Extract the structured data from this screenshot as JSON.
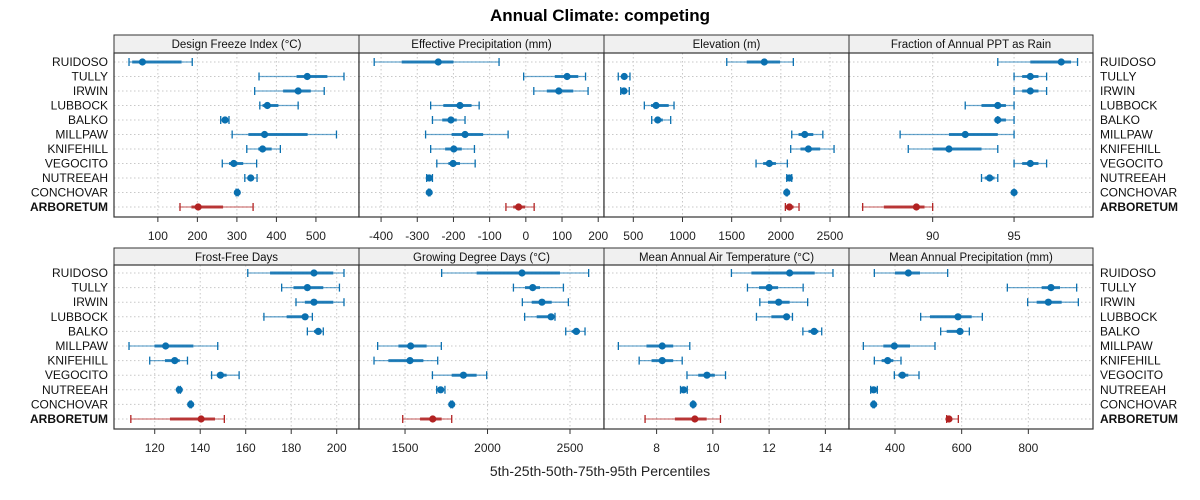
{
  "chart_data": {
    "type": "dotplot-percentile-intervals",
    "title": "Annual Climate: competing",
    "xlabel": "5th-25th-50th-75th-95th Percentiles",
    "sites": [
      "RUIDOSO",
      "TULLY",
      "IRWIN",
      "LUBBOCK",
      "BALKO",
      "MILLPAW",
      "KNIFEHILL",
      "VEGOCITO",
      "NUTREEAH",
      "CONCHOVAR",
      "ARBORETUM"
    ],
    "highlight_site": "ARBORETUM",
    "colors": {
      "default": "#0a70b0",
      "highlight": "#b22222"
    },
    "grid": true,
    "panels": [
      {
        "title": "Design Freeze Index (°C)",
        "xlim": [
          -11,
          609
        ],
        "ticks": [
          100,
          200,
          300,
          400,
          500
        ],
        "values": {
          "RUIDOSO": [
            27,
            35,
            61,
            160,
            187
          ],
          "TULLY": [
            356,
            451,
            478,
            529,
            571
          ],
          "IRWIN": [
            345,
            417,
            455,
            487,
            521
          ],
          "LUBBOCK": [
            358,
            365,
            377,
            405,
            455
          ],
          "BALKO": [
            259,
            265,
            270,
            275,
            280
          ],
          "MILLPAW": [
            288,
            329,
            370,
            479,
            552
          ],
          "KNIFEHILL": [
            325,
            354,
            365,
            388,
            410
          ],
          "VEGOCITO": [
            263,
            280,
            292,
            316,
            350
          ],
          "NUTREEAH": [
            320,
            328,
            335,
            342,
            351
          ],
          "CONCHOVAR": [
            298,
            300,
            301,
            302,
            303
          ],
          "ARBORETUM": [
            156,
            185,
            202,
            265,
            341
          ]
        }
      },
      {
        "title": "Effective Precipitation (mm)",
        "xlim": [
          -461,
          216
        ],
        "ticks": [
          -400,
          -300,
          -200,
          -100,
          0,
          100,
          200
        ],
        "values": {
          "RUIDOSO": [
            -419,
            -343,
            -242,
            -200,
            -74
          ],
          "TULLY": [
            -6,
            80,
            114,
            145,
            165
          ],
          "IRWIN": [
            22,
            58,
            91,
            131,
            172
          ],
          "LUBBOCK": [
            -263,
            -228,
            -182,
            -150,
            -129
          ],
          "BALKO": [
            -258,
            -231,
            -207,
            -191,
            -168
          ],
          "MILLPAW": [
            -277,
            -205,
            -168,
            -118,
            -49
          ],
          "KNIFEHILL": [
            -263,
            -223,
            -199,
            -177,
            -142
          ],
          "VEGOCITO": [
            -246,
            -214,
            -201,
            -182,
            -140
          ],
          "NUTREEAH": [
            -274,
            -270,
            -267,
            -263,
            -258
          ],
          "CONCHOVAR": [
            -269,
            -268,
            -267,
            -266,
            -265
          ],
          "ARBORETUM": [
            -55,
            -35,
            -20,
            -2,
            23
          ]
        }
      },
      {
        "title": "Elevation (m)",
        "xlim": [
          202,
          2693
        ],
        "ticks": [
          500,
          1000,
          1500,
          2000,
          2500
        ],
        "values": {
          "RUIDOSO": [
            1450,
            1653,
            1832,
            1992,
            2127
          ],
          "TULLY": [
            347,
            380,
            408,
            440,
            466
          ],
          "IRWIN": [
            372,
            390,
            405,
            430,
            459
          ],
          "LUBBOCK": [
            612,
            680,
            731,
            860,
            914
          ],
          "BALKO": [
            687,
            720,
            748,
            800,
            880
          ],
          "MILLPAW": [
            2111,
            2180,
            2243,
            2330,
            2427
          ],
          "KNIFEHILL": [
            2100,
            2200,
            2280,
            2400,
            2541
          ],
          "VEGOCITO": [
            1748,
            1820,
            1883,
            1950,
            2066
          ],
          "NUTREEAH": [
            2060,
            2075,
            2087,
            2100,
            2111
          ],
          "CONCHOVAR": [
            2055,
            2058,
            2060,
            2062,
            2065
          ],
          "ARBORETUM": [
            2046,
            2070,
            2087,
            2130,
            2185
          ]
        }
      },
      {
        "title": "Fraction of Annual PPT as Rain",
        "xlim": [
          84.86,
          99.85
        ],
        "ticks": [
          90,
          95
        ],
        "values": {
          "RUIDOSO": [
            94,
            96,
            97.9,
            98.5,
            98.9
          ],
          "TULLY": [
            95,
            95.5,
            96,
            96.5,
            97
          ],
          "IRWIN": [
            95,
            95.5,
            96,
            96.5,
            97
          ],
          "LUBBOCK": [
            92,
            93,
            94,
            94.5,
            95
          ],
          "BALKO": [
            94,
            94,
            94,
            94.5,
            95
          ],
          "MILLPAW": [
            88,
            91,
            92,
            94,
            95
          ],
          "KNIFEHILL": [
            88.5,
            90,
            91,
            93,
            94
          ],
          "VEGOCITO": [
            95,
            95.5,
            96,
            96.5,
            97
          ],
          "NUTREEAH": [
            93,
            93.2,
            93.5,
            93.8,
            94
          ],
          "CONCHOVAR": [
            95,
            95,
            95,
            95,
            95
          ],
          "ARBORETUM": [
            85.7,
            87,
            89,
            89.5,
            90
          ]
        }
      },
      {
        "title": "Frost-Free Days",
        "xlim": [
          102.1,
          209.8
        ],
        "ticks": [
          120,
          140,
          160,
          180,
          200
        ],
        "values": {
          "RUIDOSO": [
            160.9,
            170.7,
            190,
            198.5,
            203.2
          ],
          "TULLY": [
            175.8,
            181,
            187.1,
            194.1,
            201.2
          ],
          "IRWIN": [
            182.1,
            186,
            190,
            198.5,
            203.2
          ],
          "LUBBOCK": [
            168,
            178,
            186.1,
            187.5,
            189.3
          ],
          "BALKO": [
            187.1,
            190,
            191.9,
            193,
            194.1
          ],
          "MILLPAW": [
            108.7,
            119.9,
            124.8,
            137,
            147.7
          ],
          "KNIFEHILL": [
            117.8,
            124.5,
            128.8,
            131,
            134.4
          ],
          "VEGOCITO": [
            145,
            147.3,
            148.9,
            151.6,
            157.1
          ],
          "NUTREEAH": [
            130.3,
            130.6,
            130.8,
            131,
            131.3
          ],
          "CONCHOVAR": [
            135.5,
            135.7,
            135.8,
            135.9,
            136.1
          ],
          "ARBORETUM": [
            109.5,
            126.7,
            140.4,
            146.5,
            150.6
          ]
        }
      },
      {
        "title": "Growing Degree Days (°C)",
        "xlim": [
          1221,
          2706
        ],
        "ticks": [
          1500,
          2000,
          2500
        ],
        "values": {
          "RUIDOSO": [
            1722,
            1934,
            2209,
            2439,
            2613
          ],
          "TULLY": [
            2157,
            2227,
            2274,
            2318,
            2460
          ],
          "IRWIN": [
            2211,
            2268,
            2330,
            2389,
            2490
          ],
          "LUBBOCK": [
            2225,
            2298,
            2385,
            2399,
            2409
          ],
          "BALKO": [
            2474,
            2510,
            2538,
            2560,
            2591
          ],
          "MILLPAW": [
            1334,
            1460,
            1534,
            1631,
            1720
          ],
          "KNIFEHILL": [
            1312,
            1399,
            1530,
            1611,
            1698
          ],
          "VEGOCITO": [
            1666,
            1783,
            1854,
            1934,
            1995
          ],
          "NUTREEAH": [
            1692,
            1705,
            1716,
            1728,
            1742
          ],
          "CONCHOVAR": [
            1778,
            1780,
            1783,
            1786,
            1788
          ],
          "ARBORETUM": [
            1486,
            1591,
            1668,
            1722,
            1783
          ]
        }
      },
      {
        "title": "Mean Annual Air Temperature (°C)",
        "xlim": [
          6.13,
          14.84
        ],
        "ticks": [
          8,
          10,
          12,
          14
        ],
        "values": {
          "RUIDOSO": [
            10.66,
            11.37,
            12.73,
            13.62,
            14.27
          ],
          "TULLY": [
            11.23,
            11.64,
            12.0,
            12.32,
            13.21
          ],
          "IRWIN": [
            11.67,
            11.96,
            12.34,
            12.73,
            13.37
          ],
          "LUBBOCK": [
            11.55,
            12.08,
            12.62,
            12.73,
            12.83
          ],
          "BALKO": [
            13.2,
            13.4,
            13.6,
            13.75,
            13.87
          ],
          "MILLPAW": [
            6.64,
            7.64,
            8.2,
            8.59,
            9.18
          ],
          "KNIFEHILL": [
            7.38,
            7.82,
            8.2,
            8.59,
            8.91
          ],
          "VEGOCITO": [
            9.08,
            9.48,
            9.79,
            10.07,
            10.45
          ],
          "NUTREEAH": [
            8.85,
            8.9,
            8.96,
            9.02,
            9.09
          ],
          "CONCHOVAR": [
            9.28,
            9.29,
            9.3,
            9.31,
            9.32
          ],
          "ARBORETUM": [
            7.59,
            8.65,
            9.36,
            9.78,
            10.27
          ]
        }
      },
      {
        "title": "Mean Annual Precipitation (mm)",
        "xlim": [
          262,
          994
        ],
        "ticks": [
          400,
          600,
          800
        ],
        "values": {
          "RUIDOSO": [
            338,
            400,
            440,
            475,
            558
          ],
          "TULLY": [
            737,
            840,
            868,
            895,
            945
          ],
          "IRWIN": [
            798,
            825,
            860,
            900,
            950
          ],
          "LUBBOCK": [
            477,
            505,
            589,
            630,
            662
          ],
          "BALKO": [
            537,
            555,
            595,
            605,
            623
          ],
          "MILLPAW": [
            305,
            365,
            398,
            445,
            520
          ],
          "KNIFEHILL": [
            338,
            360,
            378,
            395,
            418
          ],
          "VEGOCITO": [
            398,
            410,
            422,
            440,
            472
          ],
          "NUTREEAH": [
            327,
            331,
            336,
            341,
            347
          ],
          "CONCHOVAR": [
            334,
            335,
            336,
            337,
            338
          ],
          "ARBORETUM": [
            555,
            558,
            562,
            570,
            590
          ]
        }
      }
    ]
  }
}
